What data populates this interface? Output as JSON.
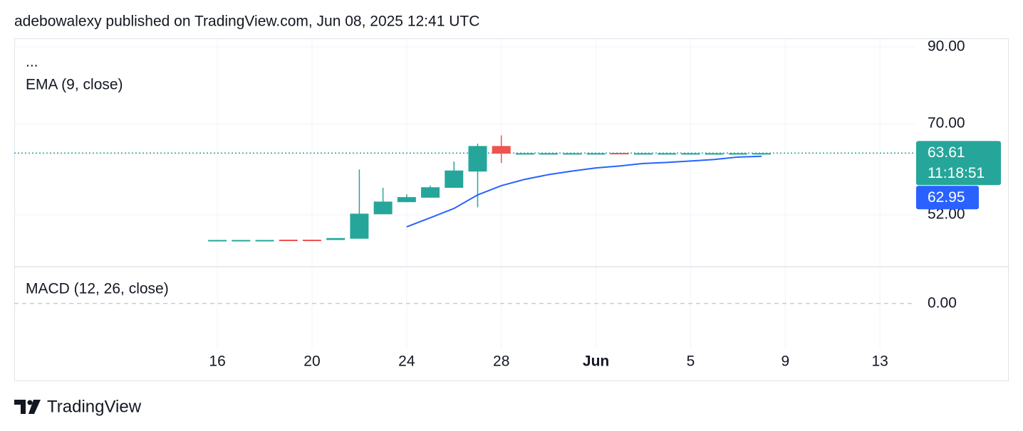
{
  "header": {
    "title": "adebowalexy published on TradingView.com, Jun 08, 2025 12:41 UTC"
  },
  "footer": {
    "brand": "TradingView"
  },
  "chart_data": {
    "type": "candlestick",
    "more": "...",
    "log_scale": true,
    "grid": true,
    "up_color": "#26a69a",
    "down_color": "#ef5350",
    "x": [
      "2025-05-16",
      "2025-05-17",
      "2025-05-18",
      "2025-05-19",
      "2025-05-20",
      "2025-05-21",
      "2025-05-22",
      "2025-05-23",
      "2025-05-24",
      "2025-05-25",
      "2025-05-26",
      "2025-05-27",
      "2025-05-28",
      "2025-05-29",
      "2025-05-30",
      "2025-05-31",
      "2025-06-01",
      "2025-06-02",
      "2025-06-03",
      "2025-06-04",
      "2025-06-05",
      "2025-06-06",
      "2025-06-07",
      "2025-06-08"
    ],
    "open": [
      47.9,
      47.9,
      47.9,
      47.95,
      47.95,
      47.9,
      48.1,
      52.1,
      54.2,
      55.0,
      56.8,
      59.9,
      65.1,
      63.5,
      63.6,
      63.6,
      63.6,
      63.65,
      63.6,
      63.6,
      63.6,
      63.6,
      63.6,
      63.6
    ],
    "high": [
      47.9,
      47.9,
      47.9,
      47.95,
      47.95,
      48.2,
      60.3,
      56.8,
      55.6,
      57.2,
      61.9,
      65.6,
      67.4,
      63.6,
      63.6,
      63.6,
      63.6,
      63.65,
      63.6,
      63.6,
      63.6,
      63.6,
      63.6,
      63.61
    ],
    "low": [
      47.9,
      47.9,
      47.9,
      47.9,
      47.9,
      47.9,
      48.1,
      52.1,
      54.2,
      55.0,
      56.8,
      53.3,
      61.6,
      63.5,
      63.6,
      63.6,
      63.6,
      63.6,
      63.6,
      63.6,
      63.6,
      63.6,
      63.6,
      63.6
    ],
    "close": [
      47.9,
      47.9,
      47.9,
      47.9,
      47.9,
      48.2,
      52.2,
      54.3,
      55.1,
      56.9,
      60.1,
      65.1,
      63.5,
      63.6,
      63.6,
      63.6,
      63.6,
      63.6,
      63.6,
      63.6,
      63.6,
      63.6,
      63.6,
      63.61
    ],
    "countdown": "11:18:51",
    "ema": {
      "name": "EMA (9, close)",
      "color": "#2962ff",
      "values": [
        null,
        null,
        null,
        null,
        null,
        null,
        null,
        null,
        50.0,
        51.5,
        53.1,
        55.5,
        57.2,
        58.4,
        59.3,
        60.0,
        60.6,
        61.0,
        61.5,
        61.7,
        62.0,
        62.3,
        62.8,
        62.95
      ]
    },
    "xlim": [
      "2025-05-07T10:00:00Z",
      "2025-06-14T12:00:00Z"
    ],
    "xticks": [
      {
        "value": "2025-05-16",
        "label": "16"
      },
      {
        "value": "2025-05-20",
        "label": "20"
      },
      {
        "value": "2025-05-24",
        "label": "24"
      },
      {
        "value": "2025-05-28",
        "label": "28"
      },
      {
        "value": "2025-06-01",
        "label": "Jun"
      },
      {
        "value": "2025-06-05",
        "label": "5"
      },
      {
        "value": "2025-06-09",
        "label": "9"
      },
      {
        "value": "2025-06-13",
        "label": "13"
      }
    ],
    "ylim": [
      44.0,
      92.3
    ],
    "yticks": [
      {
        "value": 52,
        "label": "52.00"
      },
      {
        "value": 70,
        "label": "70.00"
      },
      {
        "value": 90,
        "label": "90.00"
      }
    ],
    "macd": {
      "name": "MACD (12, 26, close)",
      "ylim": [
        -1.1,
        0.9
      ],
      "yticks": [
        {
          "value": 0,
          "label": "0.00"
        }
      ]
    }
  }
}
